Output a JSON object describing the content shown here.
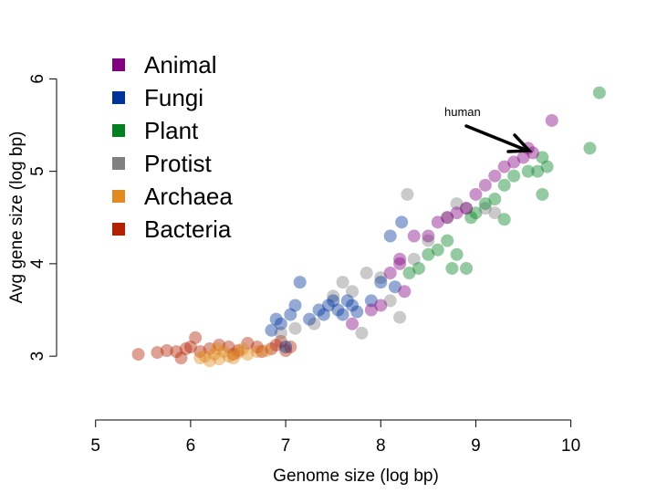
{
  "chart_data": {
    "type": "scatter",
    "xlabel": "Genome size (log bp)",
    "ylabel": "Avg gene size (log bp)",
    "xlim": [
      4.59,
      10.33
    ],
    "ylim": [
      2.31,
      6.3
    ],
    "xticks": [
      5,
      6,
      7,
      8,
      9,
      10
    ],
    "yticks": [
      3,
      4,
      5,
      6
    ],
    "annotation": "human",
    "legend": "top-left",
    "series": [
      {
        "name": "Animal",
        "color": "#800080",
        "x": [
          7.7,
          7.9,
          8.0,
          8.1,
          8.2,
          8.25,
          8.35,
          8.5,
          8.6,
          8.7,
          8.8,
          8.9,
          9.0,
          9.1,
          9.2,
          9.3,
          9.4,
          9.5,
          9.55,
          9.6,
          9.8,
          8.2
        ],
        "values": [
          3.35,
          3.5,
          3.55,
          3.9,
          4.05,
          3.7,
          4.3,
          4.3,
          4.45,
          4.5,
          4.55,
          4.6,
          4.75,
          4.85,
          4.95,
          5.05,
          5.1,
          5.15,
          5.25,
          5.2,
          5.55,
          4.0
        ]
      },
      {
        "name": "Fungi",
        "color": "#003399",
        "x": [
          6.85,
          6.9,
          6.95,
          7.05,
          7.1,
          7.15,
          7.25,
          7.35,
          7.4,
          7.45,
          7.5,
          7.55,
          7.6,
          7.65,
          7.7,
          7.75,
          7.9,
          8.0,
          8.1,
          8.22,
          8.15,
          7.0
        ],
        "values": [
          3.28,
          3.4,
          3.35,
          3.45,
          3.55,
          3.8,
          3.4,
          3.5,
          3.45,
          3.55,
          3.6,
          3.5,
          3.45,
          3.6,
          3.55,
          3.48,
          3.6,
          3.8,
          4.3,
          4.45,
          3.75,
          3.1
        ]
      },
      {
        "name": "Plant",
        "color": "#008020",
        "x": [
          8.3,
          8.4,
          8.5,
          8.6,
          8.7,
          8.75,
          8.8,
          8.9,
          8.95,
          9.0,
          9.1,
          9.2,
          9.3,
          9.3,
          9.4,
          9.55,
          9.65,
          9.7,
          9.75,
          10.2,
          10.3,
          9.7
        ],
        "values": [
          3.9,
          3.95,
          4.1,
          4.15,
          4.25,
          3.95,
          4.1,
          3.95,
          4.5,
          4.55,
          4.65,
          4.7,
          4.48,
          4.85,
          4.95,
          5.0,
          5.0,
          4.75,
          5.05,
          5.25,
          5.85,
          5.15
        ]
      },
      {
        "name": "Protist",
        "color": "#808080",
        "x": [
          6.95,
          7.1,
          7.3,
          7.5,
          7.7,
          7.8,
          7.85,
          8.0,
          8.1,
          8.2,
          8.28,
          8.35,
          8.5,
          8.7,
          8.9,
          9.1,
          9.2,
          8.8,
          7.6
        ],
        "values": [
          3.25,
          3.3,
          3.35,
          3.65,
          3.7,
          3.25,
          3.9,
          3.85,
          3.6,
          3.42,
          4.75,
          4.05,
          4.25,
          4.5,
          4.6,
          4.6,
          4.55,
          4.65,
          3.8
        ]
      },
      {
        "name": "Archaea",
        "color": "#e08a20",
        "x": [
          6.1,
          6.15,
          6.2,
          6.25,
          6.3,
          6.35,
          6.4,
          6.45,
          6.5,
          6.55,
          6.6,
          6.7,
          6.8,
          6.28
        ],
        "values": [
          2.98,
          3.0,
          2.95,
          3.02,
          2.97,
          3.05,
          3.0,
          2.98,
          3.04,
          3.08,
          3.02,
          3.05,
          3.06,
          3.08
        ]
      },
      {
        "name": "Bacteria",
        "color": "#b22000",
        "x": [
          5.45,
          5.65,
          5.75,
          5.85,
          5.95,
          6.0,
          6.05,
          6.1,
          6.2,
          6.3,
          6.4,
          6.5,
          6.6,
          6.7,
          6.75,
          6.85,
          6.9,
          7.0,
          7.05,
          5.9,
          6.45,
          6.95
        ],
        "values": [
          3.02,
          3.04,
          3.06,
          3.05,
          3.08,
          3.1,
          3.2,
          3.05,
          3.08,
          3.12,
          3.1,
          3.06,
          3.14,
          3.1,
          3.05,
          3.08,
          3.12,
          3.06,
          3.1,
          2.98,
          3.02,
          3.16
        ]
      }
    ]
  }
}
